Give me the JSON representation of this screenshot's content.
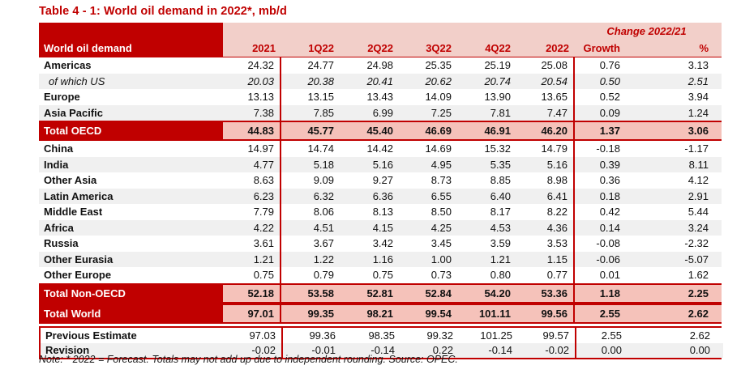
{
  "title": "Table 4 - 1: World oil demand in 2022*, mb/d",
  "table": {
    "corner_label": "World oil demand",
    "change_header": "Change 2022/21",
    "columns": [
      "2021",
      "1Q22",
      "2Q22",
      "3Q22",
      "4Q22",
      "2022",
      "Growth",
      "%"
    ],
    "rows": [
      {
        "label": "Americas",
        "style": "plain",
        "values": [
          "24.32",
          "24.77",
          "24.98",
          "25.35",
          "25.19",
          "25.08",
          "0.76",
          "3.13"
        ]
      },
      {
        "label": "of which US",
        "style": "sub",
        "values": [
          "20.03",
          "20.38",
          "20.41",
          "20.62",
          "20.74",
          "20.54",
          "0.50",
          "2.51"
        ]
      },
      {
        "label": "Europe",
        "style": "plain",
        "values": [
          "13.13",
          "13.15",
          "13.43",
          "14.09",
          "13.90",
          "13.65",
          "0.52",
          "3.94"
        ]
      },
      {
        "label": "Asia Pacific",
        "style": "alt",
        "values": [
          "7.38",
          "7.85",
          "6.99",
          "7.25",
          "7.81",
          "7.47",
          "0.09",
          "1.24"
        ]
      },
      {
        "label": "Total OECD",
        "style": "total",
        "values": [
          "44.83",
          "45.77",
          "45.40",
          "46.69",
          "46.91",
          "46.20",
          "1.37",
          "3.06"
        ]
      },
      {
        "label": "China",
        "style": "plain",
        "values": [
          "14.97",
          "14.74",
          "14.42",
          "14.69",
          "15.32",
          "14.79",
          "-0.18",
          "-1.17"
        ]
      },
      {
        "label": "India",
        "style": "alt",
        "values": [
          "4.77",
          "5.18",
          "5.16",
          "4.95",
          "5.35",
          "5.16",
          "0.39",
          "8.11"
        ]
      },
      {
        "label": "Other Asia",
        "style": "plain",
        "values": [
          "8.63",
          "9.09",
          "9.27",
          "8.73",
          "8.85",
          "8.98",
          "0.36",
          "4.12"
        ]
      },
      {
        "label": "Latin America",
        "style": "alt",
        "values": [
          "6.23",
          "6.32",
          "6.36",
          "6.55",
          "6.40",
          "6.41",
          "0.18",
          "2.91"
        ]
      },
      {
        "label": "Middle East",
        "style": "plain",
        "values": [
          "7.79",
          "8.06",
          "8.13",
          "8.50",
          "8.17",
          "8.22",
          "0.42",
          "5.44"
        ]
      },
      {
        "label": "Africa",
        "style": "alt",
        "values": [
          "4.22",
          "4.51",
          "4.15",
          "4.25",
          "4.53",
          "4.36",
          "0.14",
          "3.24"
        ]
      },
      {
        "label": "Russia",
        "style": "plain",
        "values": [
          "3.61",
          "3.67",
          "3.42",
          "3.45",
          "3.59",
          "3.53",
          "-0.08",
          "-2.32"
        ]
      },
      {
        "label": "Other Eurasia",
        "style": "alt",
        "values": [
          "1.21",
          "1.22",
          "1.16",
          "1.00",
          "1.21",
          "1.15",
          "-0.06",
          "-5.07"
        ]
      },
      {
        "label": "Other Europe",
        "style": "plain",
        "values": [
          "0.75",
          "0.79",
          "0.75",
          "0.73",
          "0.80",
          "0.77",
          "0.01",
          "1.62"
        ]
      },
      {
        "label": "Total Non-OECD",
        "style": "total",
        "values": [
          "52.18",
          "53.58",
          "52.81",
          "52.84",
          "54.20",
          "53.36",
          "1.18",
          "2.25"
        ]
      },
      {
        "label": "Total World",
        "style": "total",
        "values": [
          "97.01",
          "99.35",
          "98.21",
          "99.54",
          "101.11",
          "99.56",
          "2.55",
          "2.62"
        ]
      }
    ],
    "footer_rows": [
      {
        "label": "Previous Estimate",
        "style": "plain",
        "values": [
          "97.03",
          "99.36",
          "98.35",
          "99.32",
          "101.25",
          "99.57",
          "2.55",
          "2.62"
        ]
      },
      {
        "label": "Revision",
        "style": "alt",
        "values": [
          "-0.02",
          "-0.01",
          "-0.14",
          "0.22",
          "-0.14",
          "-0.02",
          "0.00",
          "0.00"
        ]
      }
    ]
  },
  "note": "Note: * 2022 = Forecast. Totals may not add up due to independent rounding. Source: OPEC.",
  "colors": {
    "dark_red": "#c00000",
    "header_pink": "#f2cfc9",
    "total_pink": "#f5c2ba",
    "alt_gray": "#f0f0f0"
  }
}
